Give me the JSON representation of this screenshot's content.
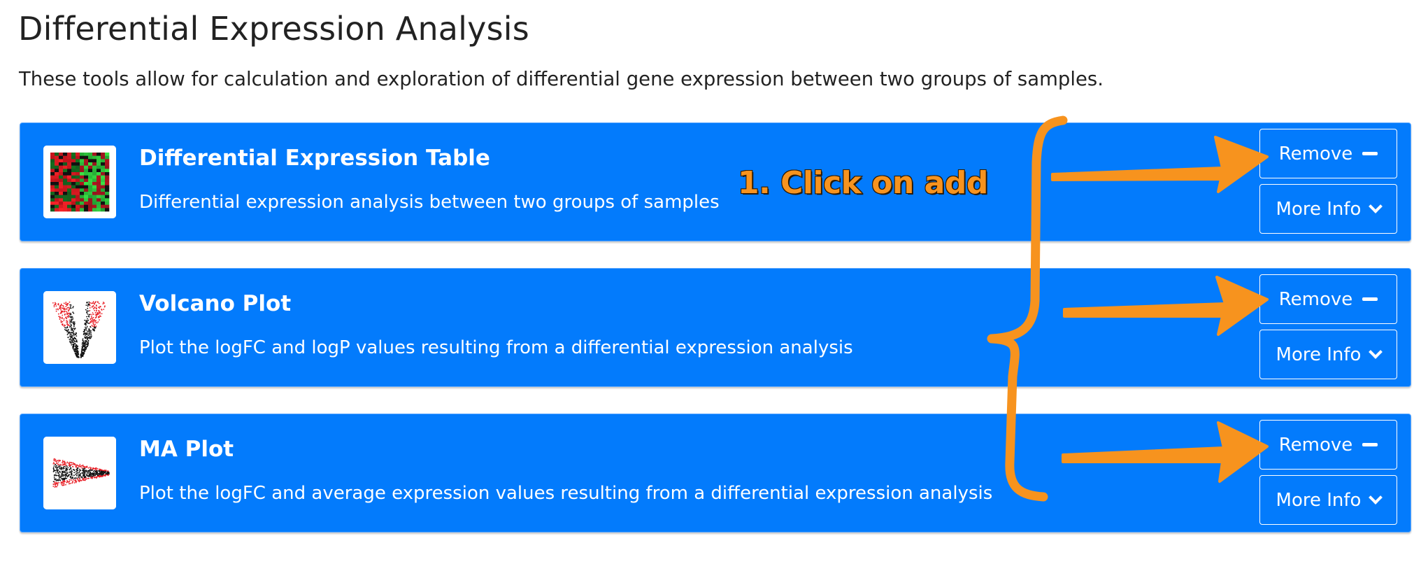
{
  "page": {
    "title": "Differential Expression Analysis",
    "description": "These tools allow for calculation and exploration of differential gene expression between two groups of samples."
  },
  "tools": [
    {
      "title": "Differential Expression Table",
      "description": "Differential expression analysis between two groups of samples",
      "thumbnail": "heatmap-thumbnail",
      "remove_label": "Remove",
      "info_label": "More Info"
    },
    {
      "title": "Volcano Plot",
      "description": "Plot the logFC and logP values resulting from a differential expression analysis",
      "thumbnail": "volcano-thumbnail",
      "remove_label": "Remove",
      "info_label": "More Info"
    },
    {
      "title": "MA Plot",
      "description": "Plot the logFC and average expression values resulting from a differential expression analysis",
      "thumbnail": "ma-plot-thumbnail",
      "remove_label": "Remove",
      "info_label": "More Info"
    }
  ],
  "annotation": {
    "text": "1. Click on add",
    "color": "#f7931e"
  },
  "colors": {
    "card_background": "#037bfc",
    "text_on_card": "#ffffff",
    "annotation_orange": "#f7931e"
  },
  "icons": {
    "remove": "minus-icon",
    "more_info": "chevron-down-icon"
  }
}
